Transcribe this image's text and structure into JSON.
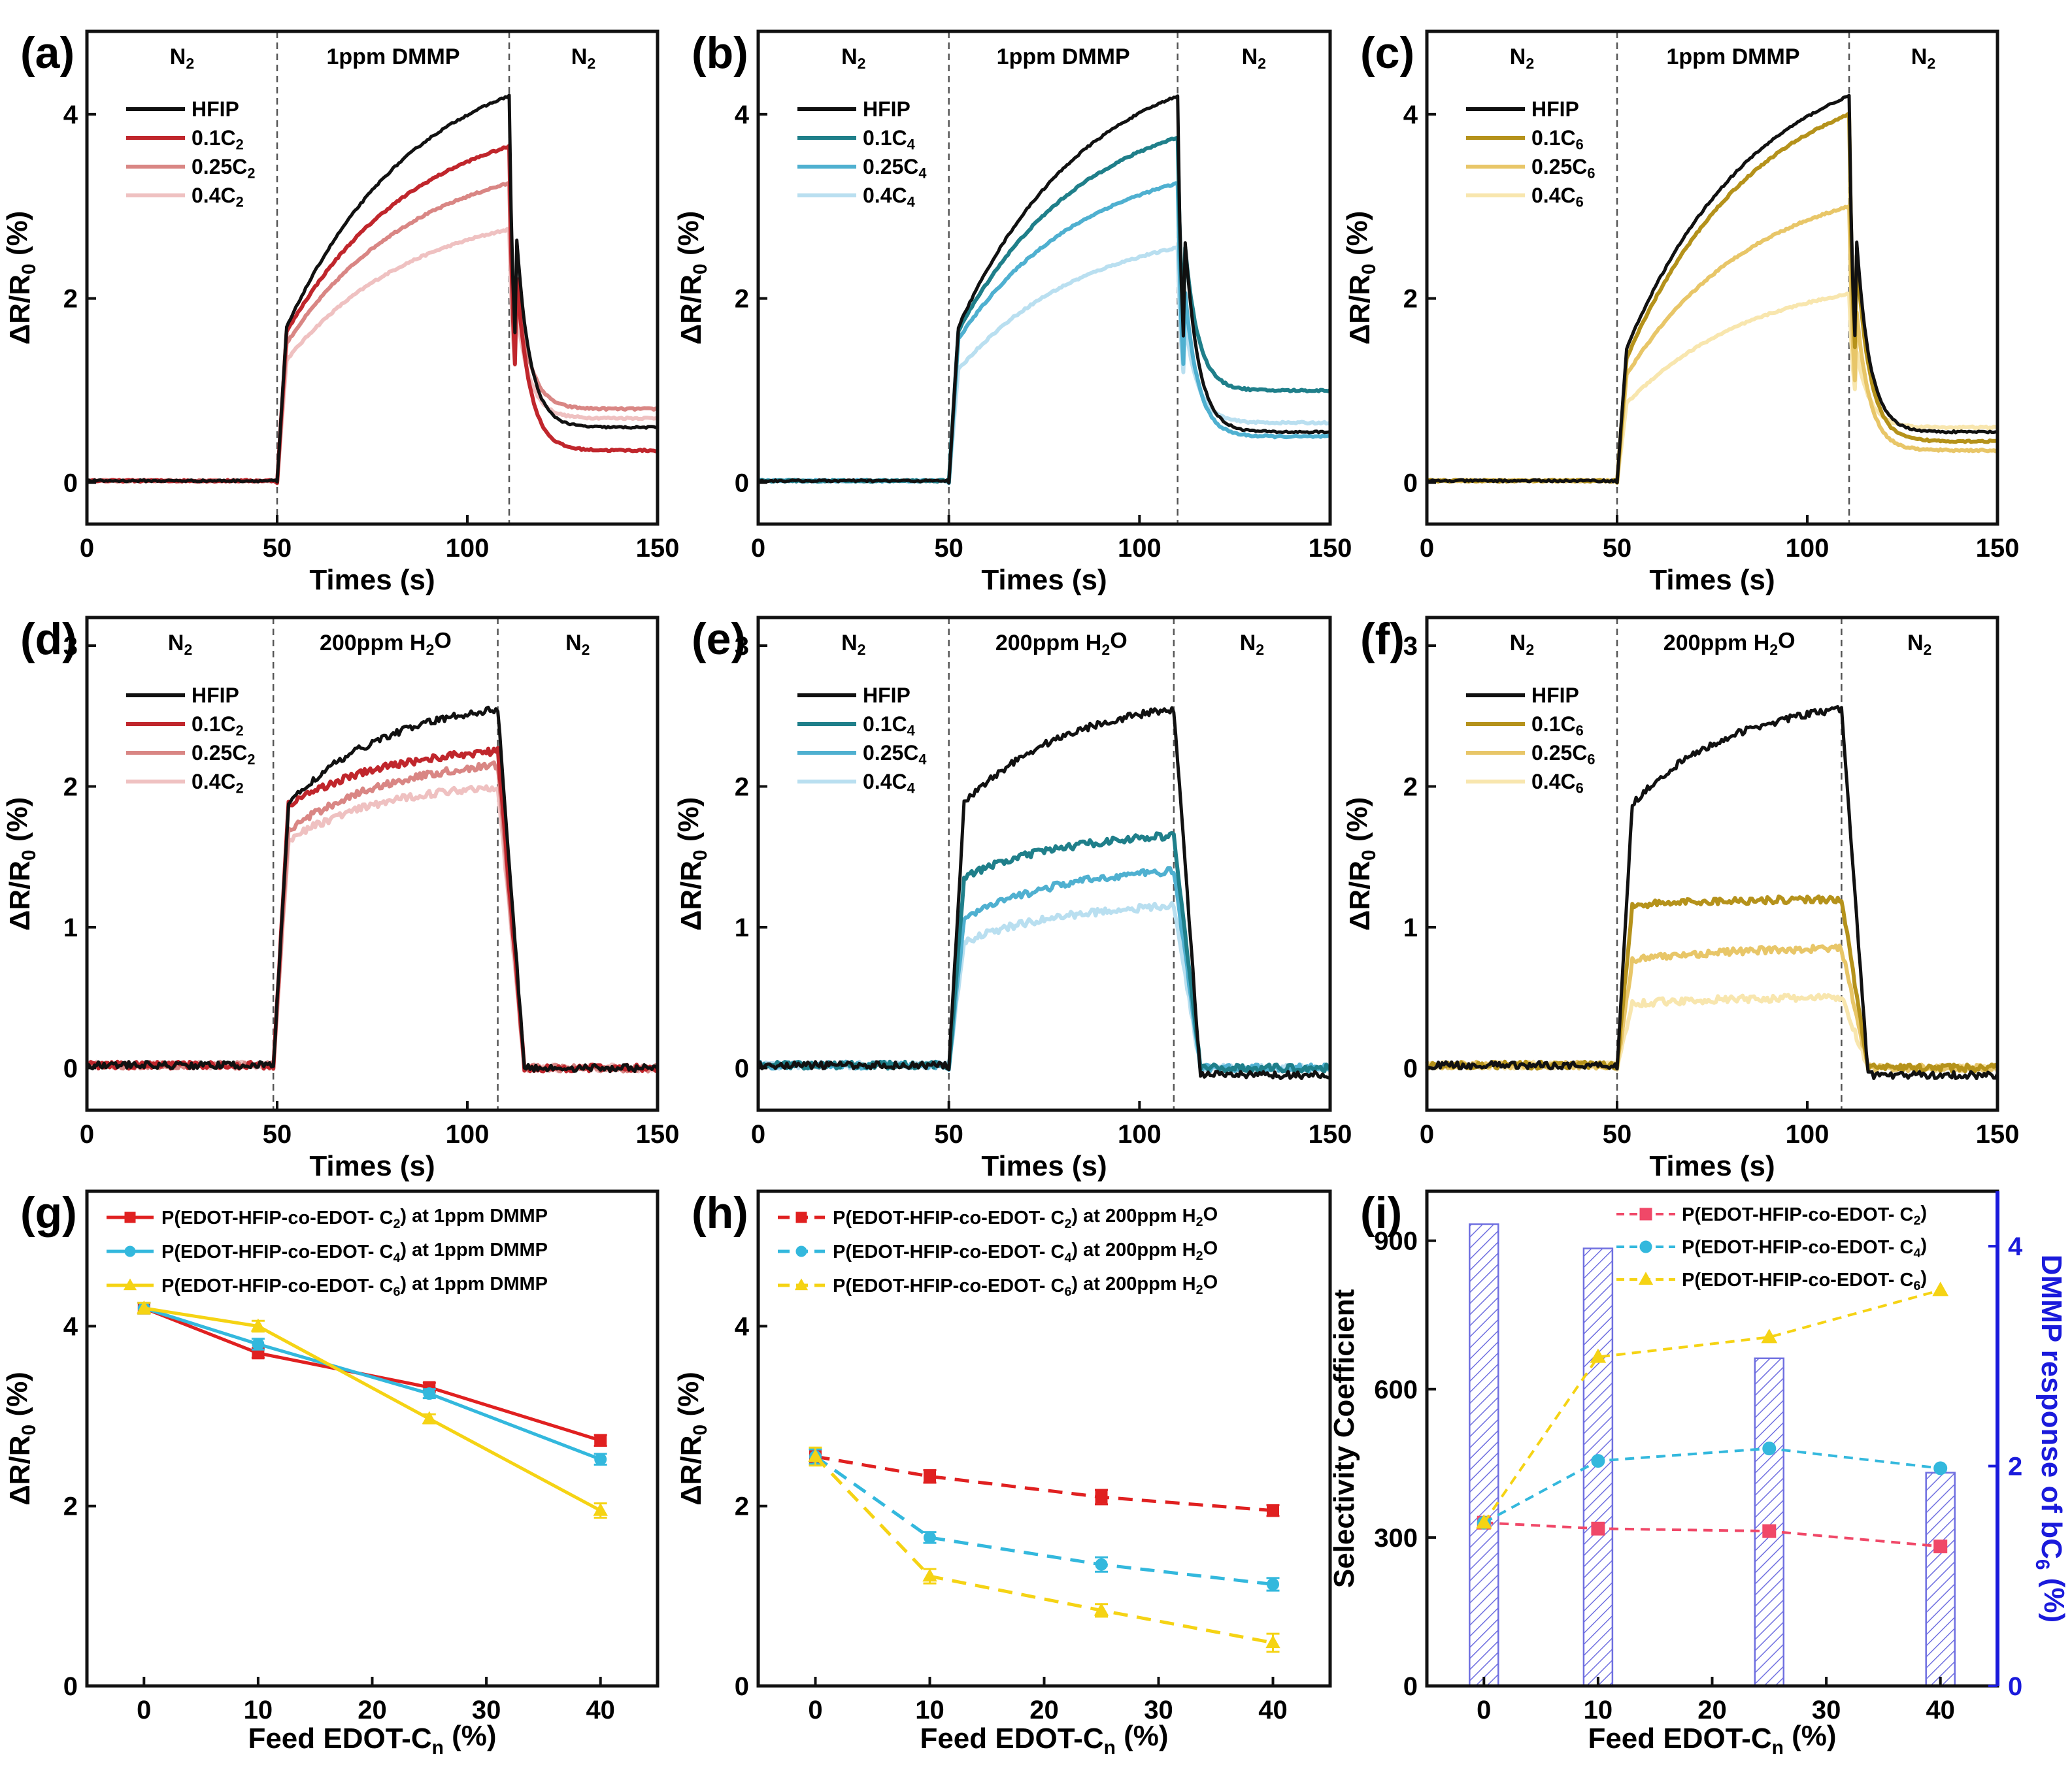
{
  "colors": {
    "hfip": "#111111",
    "c2": [
      "#c0262c",
      "#d98684",
      "#efc1c1"
    ],
    "c2_data": [
      "#b26a5c",
      "#d9998f",
      "#f0c9c3"
    ],
    "c4": [
      "#1f7f8a",
      "#4fb0d0",
      "#b9dff0"
    ],
    "c6": [
      "#b5921b",
      "#e8c668",
      "#f8e6ae"
    ],
    "g_c2": "#e02020",
    "g_c4": "#33b8dd",
    "g_c6": "#f5d314",
    "i_c2": "#f04868",
    "bar": "#6f6fe0",
    "right_axis": "#1a1adb"
  },
  "panels": [
    {
      "label": "(a)",
      "kind": "time",
      "gas": "dmmp",
      "regions": [
        "N",
        "1ppm DMMP",
        "N"
      ],
      "legend": [
        "HFIP",
        "0.1C",
        "0.25C",
        "0.4C"
      ],
      "legend_sub": [
        "",
        "2",
        "2",
        "2"
      ],
      "series_color": "c2",
      "xlabel": "Times (s)",
      "ylabel": "ΔR/R",
      "xticks": [
        "0",
        "50",
        "100",
        "150"
      ],
      "yticks": [
        "0",
        "2",
        "4"
      ],
      "xlim": [
        0,
        150
      ],
      "ylim": [
        -0.45,
        4.9
      ],
      "boundaries_s": [
        50,
        111
      ],
      "chart_data": {
        "type": "line",
        "x_on": 50,
        "x_off": 111,
        "series": [
          {
            "name": "HFIP",
            "jump": 1.45,
            "peak": 4.2,
            "final": 0.6
          },
          {
            "name": "0.1C2",
            "jump": 1.45,
            "peak": 3.65,
            "final": 0.35
          },
          {
            "name": "0.25C2",
            "jump": 1.35,
            "peak": 3.25,
            "final": 0.8
          },
          {
            "name": "0.4C2",
            "jump": 1.2,
            "peak": 2.75,
            "final": 0.7
          }
        ]
      }
    },
    {
      "label": "(b)",
      "kind": "time",
      "gas": "dmmp",
      "regions": [
        "N",
        "1ppm DMMP",
        "N"
      ],
      "legend": [
        "HFIP",
        "0.1C",
        "0.25C",
        "0.4C"
      ],
      "legend_sub": [
        "",
        "4",
        "4",
        "4"
      ],
      "series_color": "c4",
      "xlabel": "Times (s)",
      "ylabel": "ΔR/R",
      "xticks": [
        "0",
        "50",
        "100",
        "150"
      ],
      "yticks": [
        "0",
        "2",
        "4"
      ],
      "xlim": [
        0,
        150
      ],
      "ylim": [
        -0.45,
        4.9
      ],
      "boundaries_s": [
        50,
        110
      ],
      "chart_data": {
        "type": "line",
        "x_on": 50,
        "x_off": 110,
        "series": [
          {
            "name": "HFIP",
            "jump": 1.45,
            "peak": 4.2,
            "final": 0.55
          },
          {
            "name": "0.1C4",
            "jump": 1.45,
            "peak": 3.75,
            "final": 1.0
          },
          {
            "name": "0.25C4",
            "jump": 1.4,
            "peak": 3.25,
            "final": 0.5
          },
          {
            "name": "0.4C4",
            "jump": 1.1,
            "peak": 2.55,
            "final": 0.65
          }
        ]
      }
    },
    {
      "label": "(c)",
      "kind": "time",
      "gas": "dmmp",
      "regions": [
        "N",
        "1ppm DMMP",
        "N"
      ],
      "legend": [
        "HFIP",
        "0.1C",
        "0.25C",
        "0.4C"
      ],
      "legend_sub": [
        "",
        "6",
        "6",
        "6"
      ],
      "series_color": "c6",
      "xlabel": "Times (s)",
      "ylabel": "ΔR/R",
      "xticks": [
        "0",
        "50",
        "100",
        "150"
      ],
      "yticks": [
        "0",
        "2",
        "4"
      ],
      "xlim": [
        0,
        150
      ],
      "ylim": [
        -0.45,
        4.9
      ],
      "boundaries_s": [
        50,
        111
      ],
      "chart_data": {
        "type": "line",
        "x_on": 50,
        "x_off": 111,
        "series": [
          {
            "name": "HFIP",
            "jump": 1.2,
            "peak": 4.2,
            "final": 0.55
          },
          {
            "name": "0.1C6",
            "jump": 1.1,
            "peak": 4.0,
            "final": 0.45
          },
          {
            "name": "0.25C6",
            "jump": 1.0,
            "peak": 3.0,
            "final": 0.35
          },
          {
            "name": "0.4C6",
            "jump": 0.75,
            "peak": 2.05,
            "final": 0.6
          }
        ]
      }
    },
    {
      "label": "(d)",
      "kind": "time",
      "gas": "h2o",
      "regions": [
        "N",
        "200ppm H",
        "N"
      ],
      "legend": [
        "HFIP",
        "0.1C",
        "0.25C",
        "0.4C"
      ],
      "legend_sub": [
        "",
        "2",
        "2",
        "2"
      ],
      "series_color": "c2",
      "xlabel": "Times (s)",
      "ylabel": "ΔR/R",
      "xticks": [
        "0",
        "50",
        "100",
        "150"
      ],
      "yticks": [
        "0",
        "1",
        "2",
        "3"
      ],
      "xlim": [
        0,
        150
      ],
      "ylim": [
        -0.3,
        3.2
      ],
      "boundaries_s": [
        49,
        108
      ],
      "chart_data": {
        "type": "line",
        "x_on": 49,
        "x_off": 108,
        "series": [
          {
            "name": "HFIP",
            "jump": 1.75,
            "peak": 2.55,
            "final": 0.0
          },
          {
            "name": "0.1C2",
            "jump": 1.8,
            "peak": 2.25,
            "final": 0.0
          },
          {
            "name": "0.25C2",
            "jump": 1.6,
            "peak": 2.15,
            "final": 0.0
          },
          {
            "name": "0.4C2",
            "jump": 1.55,
            "peak": 2.0,
            "final": 0.0
          }
        ]
      }
    },
    {
      "label": "(e)",
      "kind": "time",
      "gas": "h2o",
      "regions": [
        "N",
        "200ppm H",
        "N"
      ],
      "legend": [
        "HFIP",
        "0.1C",
        "0.25C",
        "0.4C"
      ],
      "legend_sub": [
        "",
        "4",
        "4",
        "4"
      ],
      "series_color": "c4",
      "xlabel": "Times (s)",
      "ylabel": "ΔR/R",
      "xticks": [
        "0",
        "50",
        "100",
        "150"
      ],
      "yticks": [
        "0",
        "1",
        "2",
        "3"
      ],
      "xlim": [
        0,
        150
      ],
      "ylim": [
        -0.3,
        3.2
      ],
      "boundaries_s": [
        50,
        109
      ],
      "chart_data": {
        "type": "line",
        "x_on": 50,
        "x_off": 109,
        "series": [
          {
            "name": "HFIP",
            "jump": 1.75,
            "peak": 2.55,
            "final": -0.05
          },
          {
            "name": "0.1C4",
            "jump": 1.3,
            "peak": 1.65,
            "final": 0.0
          },
          {
            "name": "0.25C4",
            "jump": 1.0,
            "peak": 1.4,
            "final": 0.0
          },
          {
            "name": "0.4C4",
            "jump": 0.85,
            "peak": 1.15,
            "final": 0.0
          }
        ]
      }
    },
    {
      "label": "(f)",
      "kind": "time",
      "gas": "h2o",
      "regions": [
        "N",
        "200ppm H",
        "N"
      ],
      "legend": [
        "HFIP",
        "0.1C",
        "0.25C",
        "0.4C"
      ],
      "legend_sub": [
        "",
        "6",
        "6",
        "6"
      ],
      "series_color": "c6",
      "xlabel": "Times (s)",
      "ylabel": "ΔR/R",
      "xticks": [
        "0",
        "50",
        "100",
        "150"
      ],
      "yticks": [
        "0",
        "1",
        "2",
        "3"
      ],
      "xlim": [
        0,
        150
      ],
      "ylim": [
        -0.3,
        3.2
      ],
      "boundaries_s": [
        50,
        109
      ],
      "chart_data": {
        "type": "line",
        "x_on": 50,
        "x_off": 109,
        "series": [
          {
            "name": "HFIP",
            "jump": 1.75,
            "peak": 2.55,
            "final": -0.05
          },
          {
            "name": "0.1C6",
            "jump": 1.15,
            "peak": 1.2,
            "final": 0.0
          },
          {
            "name": "0.25C6",
            "jump": 0.75,
            "peak": 0.85,
            "final": 0.0
          },
          {
            "name": "0.4C6",
            "jump": 0.45,
            "peak": 0.5,
            "final": 0.0
          }
        ]
      }
    },
    {
      "label": "(g)",
      "kind": "feed",
      "xlabel": "Feed EDOT-C",
      "xlabel_sub": "n",
      "xlabel_tail": " (%)",
      "ylabel": "ΔR/R",
      "xticks": [
        "0",
        "10",
        "20",
        "30",
        "40"
      ],
      "yticks": [
        "0",
        "2",
        "4"
      ],
      "xlim": [
        -5,
        45
      ],
      "ylim": [
        0,
        5.5
      ],
      "legend": [
        {
          "pre": "P(EDOT-HFIP-co-EDOT- C",
          "sub": "2",
          "post": ") at 1ppm DMMP"
        },
        {
          "pre": "P(EDOT-HFIP-co-EDOT- C",
          "sub": "4",
          "post": ") at 1ppm DMMP"
        },
        {
          "pre": "P(EDOT-HFIP-co-EDOT- C",
          "sub": "6",
          "post": ") at 1ppm DMMP"
        }
      ],
      "chart_data": {
        "type": "line",
        "x": [
          0,
          10,
          25,
          40
        ],
        "series": [
          {
            "name": "P(EDOT-HFIP-co-EDOT-C2) at 1ppm DMMP",
            "values": [
              4.2,
              3.7,
              3.32,
              2.73
            ],
            "err": [
              0.06,
              0.05,
              0.05,
              0.06
            ]
          },
          {
            "name": "P(EDOT-HFIP-co-EDOT-C4) at 1ppm DMMP",
            "values": [
              4.2,
              3.8,
              3.25,
              2.52
            ],
            "err": [
              0.06,
              0.06,
              0.05,
              0.06
            ]
          },
          {
            "name": "P(EDOT-HFIP-co-EDOT-C6) at 1ppm DMMP",
            "values": [
              4.2,
              4.0,
              2.97,
              1.95
            ],
            "err": [
              0.06,
              0.06,
              0.05,
              0.08
            ]
          }
        ]
      }
    },
    {
      "label": "(h)",
      "kind": "feed",
      "xlabel": "Feed EDOT-C",
      "xlabel_sub": "n",
      "xlabel_tail": " (%)",
      "ylabel": "ΔR/R",
      "xticks": [
        "0",
        "10",
        "20",
        "30",
        "40"
      ],
      "yticks": [
        "0",
        "2",
        "4"
      ],
      "xlim": [
        -5,
        45
      ],
      "ylim": [
        0,
        5.5
      ],
      "legend": [
        {
          "pre": "P(EDOT-HFIP-co-EDOT- C",
          "sub": "2",
          "post": ") at 200ppm H",
          "post_sub": "2",
          "post_tail": "O"
        },
        {
          "pre": "P(EDOT-HFIP-co-EDOT- C",
          "sub": "4",
          "post": ") at 200ppm H",
          "post_sub": "2",
          "post_tail": "O"
        },
        {
          "pre": "P(EDOT-HFIP-co-EDOT- C",
          "sub": "6",
          "post": ") at 200ppm H",
          "post_sub": "2",
          "post_tail": "O"
        }
      ],
      "chart_data": {
        "type": "line",
        "x": [
          0,
          10,
          25,
          40
        ],
        "series": [
          {
            "name": "P(EDOT-HFIP-co-EDOT-C2) at 200ppm H2O",
            "values": [
              2.55,
              2.33,
              2.1,
              1.95
            ],
            "err": [
              0.08,
              0.07,
              0.08,
              0.06
            ]
          },
          {
            "name": "P(EDOT-HFIP-co-EDOT-C4) at 200ppm H2O",
            "values": [
              2.55,
              1.65,
              1.35,
              1.13
            ],
            "err": [
              0.08,
              0.06,
              0.08,
              0.07
            ]
          },
          {
            "name": "P(EDOT-HFIP-co-EDOT-C6) at 200ppm H2O",
            "values": [
              2.55,
              1.22,
              0.84,
              0.48
            ],
            "err": [
              0.1,
              0.08,
              0.07,
              0.1
            ]
          }
        ]
      }
    },
    {
      "label": "(i)",
      "kind": "selectivity",
      "xlabel": "Feed EDOT-C",
      "xlabel_sub": "n",
      "xlabel_tail": " (%)",
      "ylabel": "Selectivity Coefficient",
      "ylabel_right": "DMMP response of bC",
      "ylabel_right_sub": "6",
      "ylabel_right_tail": " (%)",
      "xticks": [
        "0",
        "10",
        "20",
        "30",
        "40"
      ],
      "yticks": [
        "0",
        "300",
        "600",
        "900"
      ],
      "yticks_right": [
        "0",
        "2",
        "4"
      ],
      "xlim": [
        -5,
        45
      ],
      "ylim": [
        0,
        1000
      ],
      "ylim_right": [
        0,
        4.5
      ],
      "legend": [
        {
          "pre": "P(EDOT-HFIP-co-EDOT- C",
          "sub": "2",
          "post": ")"
        },
        {
          "pre": "P(EDOT-HFIP-co-EDOT- C",
          "sub": "4",
          "post": ")"
        },
        {
          "pre": "P(EDOT-HFIP-co-EDOT- C",
          "sub": "6",
          "post": ")"
        }
      ],
      "chart_data": {
        "type": "line+bar",
        "x": [
          0,
          10,
          25,
          40
        ],
        "series": [
          {
            "name": "P(EDOT-HFIP-co-EDOT-C2)",
            "values": [
              330,
              318,
              313,
              282
            ]
          },
          {
            "name": "P(EDOT-HFIP-co-EDOT-C4)",
            "values": [
              330,
              455,
              480,
              440
            ]
          },
          {
            "name": "P(EDOT-HFIP-co-EDOT-C6)",
            "values": [
              330,
              665,
              705,
              800
            ]
          }
        ],
        "bars": {
          "name": "DMMP response of bC6 (%)",
          "values": [
            4.2,
            3.98,
            2.98,
            1.94
          ]
        }
      }
    }
  ]
}
